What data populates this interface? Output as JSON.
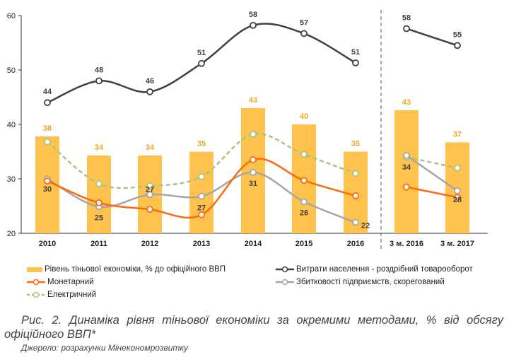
{
  "chart_data": {
    "type": "bar+line",
    "categories": [
      "2010",
      "2011",
      "2012",
      "2013",
      "2014",
      "2015",
      "2016",
      "3 м. 2016",
      "3 м. 2017"
    ],
    "ylim": [
      20,
      60
    ],
    "yticks": [
      "20",
      "30",
      "40",
      "50",
      "60"
    ],
    "grid": false,
    "legend_placement": "bottom",
    "separator_after_category": "2016",
    "bars": {
      "name": "Рівень тіньової економіки, % до офіційного ВВП",
      "color": "#FFC24D",
      "values": [
        37.8,
        34.3,
        34.3,
        35,
        43,
        40,
        35,
        42.6,
        36.7
      ],
      "labels": [
        "38",
        "34",
        "34",
        "35",
        "43",
        "40",
        "35",
        "43",
        "37"
      ],
      "label_color": "#F5A623"
    },
    "series": [
      {
        "name": "Витрати населення - роздрібний товарооборот",
        "color": "#404040",
        "style": "solid",
        "values": [
          44,
          48,
          46,
          51.2,
          58.2,
          56.7,
          51.3,
          57.6,
          54.5
        ],
        "labels": [
          "44",
          "48",
          "46",
          "51",
          "58",
          "57",
          "51",
          "58",
          "55"
        ]
      },
      {
        "name": "Монетарний",
        "color": "#FF6A0D",
        "style": "solid",
        "values": [
          29.6,
          25.6,
          24.4,
          23.4,
          33.5,
          29.7,
          26.9,
          28.5,
          26.6
        ],
        "labels": []
      },
      {
        "name": "Збитковості підприємств, скорегований",
        "color": "#A6A6A6",
        "style": "solid",
        "values": [
          30,
          24.9,
          27.1,
          26.8,
          31.2,
          25.8,
          22,
          34.3,
          27.8
        ],
        "labels": [
          "30",
          "25",
          "27",
          "27",
          "31",
          "26",
          "22",
          "34",
          "28"
        ]
      },
      {
        "name": "Електричний",
        "color": "#A9C47F",
        "style": "dashed",
        "values": [
          36.8,
          29.1,
          28.7,
          30.4,
          38.2,
          34.5,
          31,
          34,
          32
        ],
        "labels": []
      }
    ]
  },
  "caption": {
    "title": "Рис. 2. Динаміка рівня тіньової економіки за окремими методами, % від обсягу офіційного ВВП*",
    "source": "Джерело: розрахунки Мінекономрозвитку"
  }
}
